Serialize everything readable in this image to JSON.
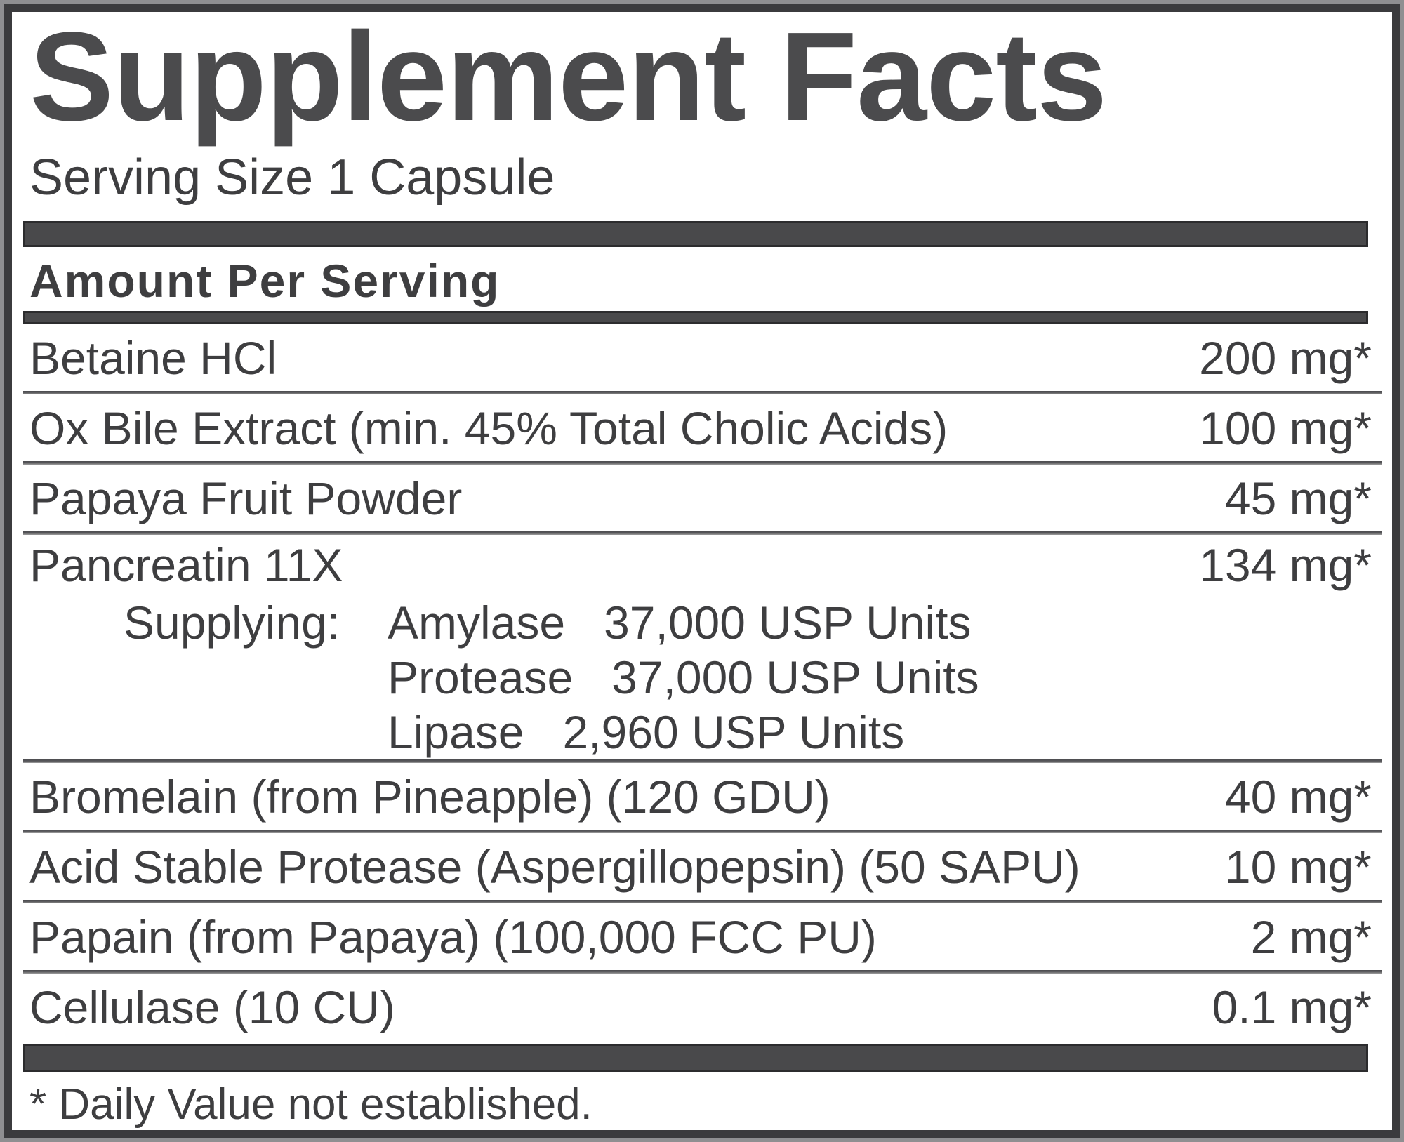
{
  "label": {
    "title": "Supplement Facts",
    "serving_size": "Serving Size 1 Capsule",
    "column_header": "Amount Per Serving",
    "rows": [
      {
        "name": "Betaine HCl",
        "amount": "200 mg*"
      },
      {
        "name": "Ox Bile Extract (min. 45% Total Cholic Acids)",
        "amount": "100 mg*"
      },
      {
        "name": "Papaya Fruit Powder",
        "amount": "45 mg*"
      },
      {
        "name": "Pancreatin 11X",
        "amount": "134 mg*",
        "supplying_label": "Supplying:",
        "supplying": [
          {
            "name": "Amylase",
            "value": "37,000 USP Units"
          },
          {
            "name": "Protease",
            "value": "37,000 USP Units"
          },
          {
            "name": "Lipase",
            "value": "2,960 USP Units"
          }
        ]
      },
      {
        "name": "Bromelain (from Pineapple) (120 GDU)",
        "amount": "40 mg*"
      },
      {
        "name": "Acid Stable Protease (Aspergillopepsin) (50 SAPU)",
        "amount": "10 mg*"
      },
      {
        "name": "Papain (from Papaya) (100,000 FCC PU)",
        "amount": "2 mg*"
      },
      {
        "name": "Cellulase (10 CU)",
        "amount": "0.1 mg*"
      }
    ],
    "footnote": "* Daily Value not established.",
    "colors": {
      "border": "#3b3b3d",
      "bar": "#49494b",
      "ink": "#3e3e40",
      "title": "#4b4b4d",
      "outer": "#8f8f91",
      "paper": "#ffffff"
    }
  }
}
